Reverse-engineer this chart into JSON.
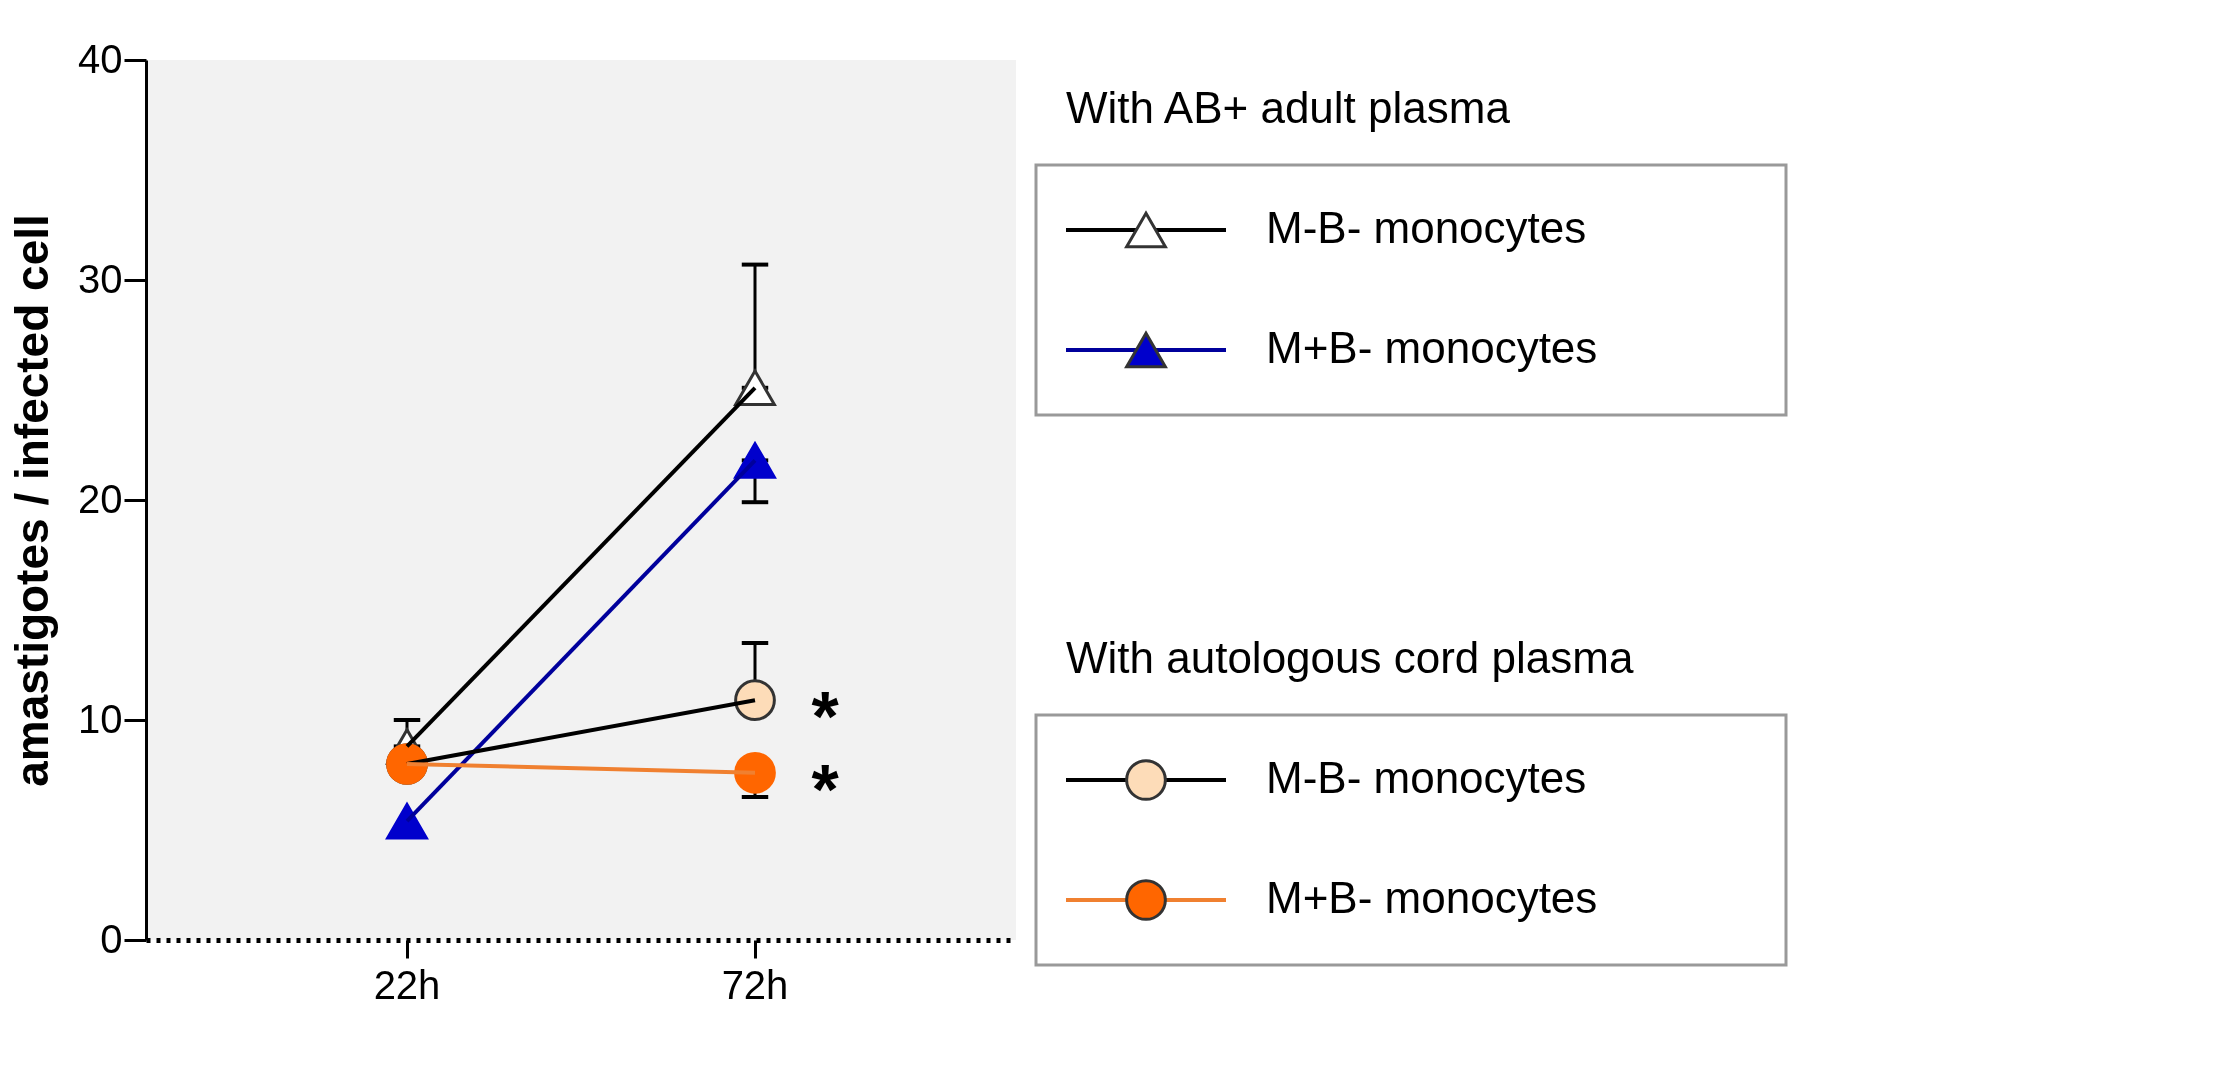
{
  "chart_data": {
    "type": "line",
    "ylabel": "amastigotes / infected cell",
    "categories": [
      "22h",
      "72h"
    ],
    "ylim": [
      0,
      40
    ],
    "yticks": [
      0,
      10,
      20,
      30,
      40
    ],
    "grid": false,
    "legend": "right",
    "series": [
      {
        "name": "M-B- monocytes",
        "color": "#000000",
        "colors": [
          "#ffffff",
          "#ffffff"
        ],
        "marker": "triangle",
        "values": [
          8.8,
          25.1
        ],
        "errors": [
          [
            8.8,
            10.0
          ],
          [
            25.1,
            30.7
          ]
        ]
      },
      {
        "name": "M+B- monocytes",
        "color": "#00009c",
        "colors": [
          "#0000cc",
          "#0000cc"
        ],
        "marker": "triangle",
        "values": [
          5.4,
          21.8
        ],
        "errors": [
          null,
          [
            19.9,
            21.8
          ]
        ]
      },
      {
        "name": "M-B- monocytes",
        "color": "#000000",
        "colors": [
          "#fddcb8",
          "#fddcb8"
        ],
        "marker": "circle",
        "values": [
          8.0,
          10.9
        ],
        "errors": [
          null,
          [
            10.9,
            13.5
          ]
        ]
      },
      {
        "name": "M+B- monocytes",
        "color": "#f08030",
        "colors": [
          "#ff6600",
          "#ff6600"
        ],
        "marker": "circle",
        "values": [
          8.0,
          7.6
        ],
        "errors": [
          null,
          [
            6.5,
            7.6
          ]
        ]
      }
    ],
    "annotations": [
      "With AB+ adult plasma",
      "With autologous cord plasma",
      {
        "text": "*",
        "x": "72h",
        "y": 10.9
      },
      {
        "text": "*",
        "x": "72h",
        "y": 7.6
      }
    ]
  }
}
